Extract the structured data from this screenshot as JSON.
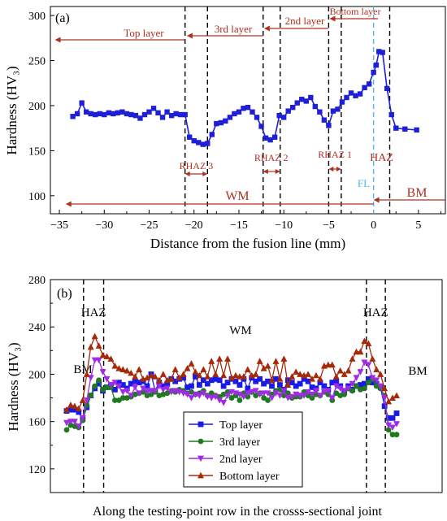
{
  "chart_data": [
    {
      "panel_label": "(a)",
      "type": "line",
      "xlabel": "Distance from the fusion line (mm)",
      "ylabel": "Hardness (HV₃)",
      "xlim": [
        -36,
        8
      ],
      "ylim": [
        80,
        310
      ],
      "xticks": [
        -35,
        -30,
        -25,
        -20,
        -15,
        -10,
        -5,
        0,
        5
      ],
      "yticks": [
        100,
        150,
        200,
        250,
        300
      ],
      "series_color": "#1f1fd6",
      "points": [
        [
          -33.5,
          188
        ],
        [
          -33.0,
          191
        ],
        [
          -32.5,
          203
        ],
        [
          -32.0,
          193
        ],
        [
          -31.5,
          191
        ],
        [
          -31.0,
          190
        ],
        [
          -30.5,
          191
        ],
        [
          -30.0,
          190
        ],
        [
          -29.5,
          192
        ],
        [
          -29.0,
          191
        ],
        [
          -28.5,
          192
        ],
        [
          -28.0,
          193
        ],
        [
          -27.5,
          191
        ],
        [
          -27.0,
          190
        ],
        [
          -26.5,
          189
        ],
        [
          -26.0,
          186
        ],
        [
          -25.5,
          190
        ],
        [
          -25.0,
          193
        ],
        [
          -24.5,
          197
        ],
        [
          -24.0,
          192
        ],
        [
          -23.5,
          187
        ],
        [
          -23.0,
          193
        ],
        [
          -22.5,
          189
        ],
        [
          -22.0,
          191
        ],
        [
          -21.5,
          190
        ],
        [
          -21.0,
          190
        ],
        [
          -20.5,
          165
        ],
        [
          -20.0,
          161
        ],
        [
          -19.5,
          159
        ],
        [
          -19.0,
          157
        ],
        [
          -18.5,
          158
        ],
        [
          -18.0,
          168
        ],
        [
          -17.5,
          180
        ],
        [
          -17.0,
          181
        ],
        [
          -16.5,
          183
        ],
        [
          -16.0,
          187
        ],
        [
          -15.5,
          191
        ],
        [
          -15.0,
          193
        ],
        [
          -14.5,
          197
        ],
        [
          -14.0,
          198
        ],
        [
          -13.5,
          193
        ],
        [
          -13.0,
          187
        ],
        [
          -12.5,
          177
        ],
        [
          -12.0,
          164
        ],
        [
          -11.5,
          162
        ],
        [
          -11.0,
          165
        ],
        [
          -10.5,
          189
        ],
        [
          -10.0,
          187
        ],
        [
          -9.5,
          194
        ],
        [
          -9.0,
          198
        ],
        [
          -8.5,
          203
        ],
        [
          -8.0,
          207
        ],
        [
          -7.5,
          205
        ],
        [
          -7.0,
          209
        ],
        [
          -6.5,
          199
        ],
        [
          -6.0,
          193
        ],
        [
          -5.5,
          184
        ],
        [
          -5.0,
          178
        ],
        [
          -4.5,
          194
        ],
        [
          -4.0,
          196
        ],
        [
          -3.5,
          204
        ],
        [
          -3.0,
          209
        ],
        [
          -2.5,
          214
        ],
        [
          -2.0,
          211
        ],
        [
          -1.5,
          213
        ],
        [
          -1.0,
          220
        ],
        [
          -0.5,
          224
        ],
        [
          0.0,
          237
        ],
        [
          0.3,
          245
        ],
        [
          0.6,
          260
        ],
        [
          1.0,
          259
        ],
        [
          1.5,
          219
        ],
        [
          2.0,
          190
        ],
        [
          2.5,
          175
        ],
        [
          3.5,
          174
        ],
        [
          4.8,
          173
        ]
      ],
      "vlines_dashed": [
        -21.0,
        -18.5,
        -12.3,
        -10.4,
        -5.0,
        -3.6,
        1.8
      ],
      "fusion_line_x": 0,
      "annotations": {
        "top_layer": "Top layer",
        "third_layer": "3rd layer",
        "second_layer": "2nd layer",
        "bottom_layer": "Bottom layer",
        "rhaz3": "RHAZ 3",
        "rhaz2": "RHAZ 2",
        "rhaz1": "RHAZ 1",
        "haz": "HAZ",
        "fl": "FL",
        "wm": "WM",
        "bm": "BM"
      }
    },
    {
      "panel_label": "(b)",
      "type": "line",
      "xlabel": "Along the testing-point row in the crosss-sectional joint",
      "ylabel": "Hardness (HV₃)",
      "ylim": [
        100,
        280
      ],
      "yticks": [
        120,
        160,
        200,
        240,
        280
      ],
      "region_labels": {
        "bm_left": "BM",
        "haz_left": "HAZ",
        "wm": "WM",
        "haz_right": "HAZ",
        "bm_right": "BM"
      },
      "vlines_dashed_index": [
        4.2,
        9.2,
        74.5,
        79.2
      ],
      "series": [
        {
          "name": "Top layer",
          "color": "#1a1ae6",
          "marker": "square",
          "values": [
            169,
            170,
            170,
            168,
            162,
            172,
            182,
            188,
            192,
            186,
            189,
            191,
            187,
            193,
            191,
            188,
            192,
            194,
            193,
            194,
            190,
            200,
            186,
            193,
            190,
            192,
            196,
            194,
            196,
            197,
            189,
            190,
            198,
            191,
            195,
            192,
            195,
            196,
            195,
            190,
            193,
            196,
            194,
            191,
            196,
            188,
            197,
            194,
            196,
            192,
            194,
            190,
            196,
            191,
            187,
            195,
            193,
            190,
            192,
            196,
            194,
            189,
            188,
            193,
            190,
            187,
            193,
            194,
            190,
            186,
            190,
            187,
            190,
            191,
            192,
            196,
            193,
            192,
            189,
            173,
            163,
            163,
            167
          ]
        },
        {
          "name": "3rd layer",
          "color": "#1f7a1f",
          "marker": "circle",
          "values": [
            153,
            157,
            156,
            155,
            161,
            174,
            182,
            190,
            195,
            187,
            189,
            189,
            178,
            178,
            180,
            180,
            181,
            183,
            184,
            185,
            182,
            183,
            185,
            182,
            183,
            184,
            186,
            185,
            187,
            186,
            184,
            185,
            183,
            184,
            186,
            182,
            184,
            182,
            181,
            183,
            185,
            180,
            182,
            178,
            184,
            181,
            185,
            182,
            184,
            180,
            178,
            183,
            186,
            187,
            182,
            184,
            180,
            181,
            181,
            185,
            182,
            180,
            183,
            182,
            185,
            183,
            178,
            184,
            182,
            183,
            188,
            186,
            190,
            187,
            188,
            193,
            196,
            190,
            188,
            182,
            153,
            149,
            149
          ]
        },
        {
          "name": "2nd layer",
          "color": "#a12ae6",
          "marker": "triangle-down",
          "values": [
            159,
            160,
            160,
            156,
            163,
            178,
            197,
            212,
            212,
            202,
            196,
            191,
            193,
            190,
            185,
            186,
            182,
            189,
            184,
            188,
            185,
            186,
            186,
            190,
            187,
            188,
            185,
            186,
            185,
            184,
            183,
            180,
            183,
            182,
            184,
            181,
            180,
            181,
            178,
            176,
            182,
            185,
            184,
            183,
            181,
            184,
            185,
            186,
            183,
            184,
            184,
            180,
            184,
            182,
            186,
            180,
            181,
            183,
            182,
            182,
            185,
            183,
            186,
            182,
            185,
            186,
            180,
            190,
            188,
            186,
            188,
            192,
            197,
            202,
            210,
            208,
            197,
            195,
            190,
            180,
            157,
            155,
            158
          ]
        },
        {
          "name": "Bottom layer",
          "color": "#a52a0a",
          "marker": "triangle-up",
          "values": [
            170,
            174,
            173,
            171,
            178,
            200,
            223,
            232,
            224,
            216,
            215,
            213,
            207,
            205,
            204,
            203,
            201,
            198,
            204,
            196,
            197,
            199,
            198,
            195,
            200,
            195,
            196,
            204,
            197,
            200,
            205,
            209,
            202,
            199,
            204,
            198,
            211,
            200,
            213,
            199,
            213,
            197,
            199,
            198,
            198,
            204,
            199,
            200,
            211,
            205,
            207,
            195,
            211,
            196,
            213,
            191,
            198,
            202,
            200,
            199,
            200,
            196,
            199,
            196,
            207,
            208,
            208,
            198,
            203,
            200,
            203,
            213,
            219,
            219,
            228,
            226,
            213,
            204,
            200,
            188,
            177,
            180,
            182
          ]
        }
      ]
    }
  ],
  "colors": {
    "annotation_red": "#b03020",
    "fusion_line_cyan": "#4fb8e6"
  }
}
